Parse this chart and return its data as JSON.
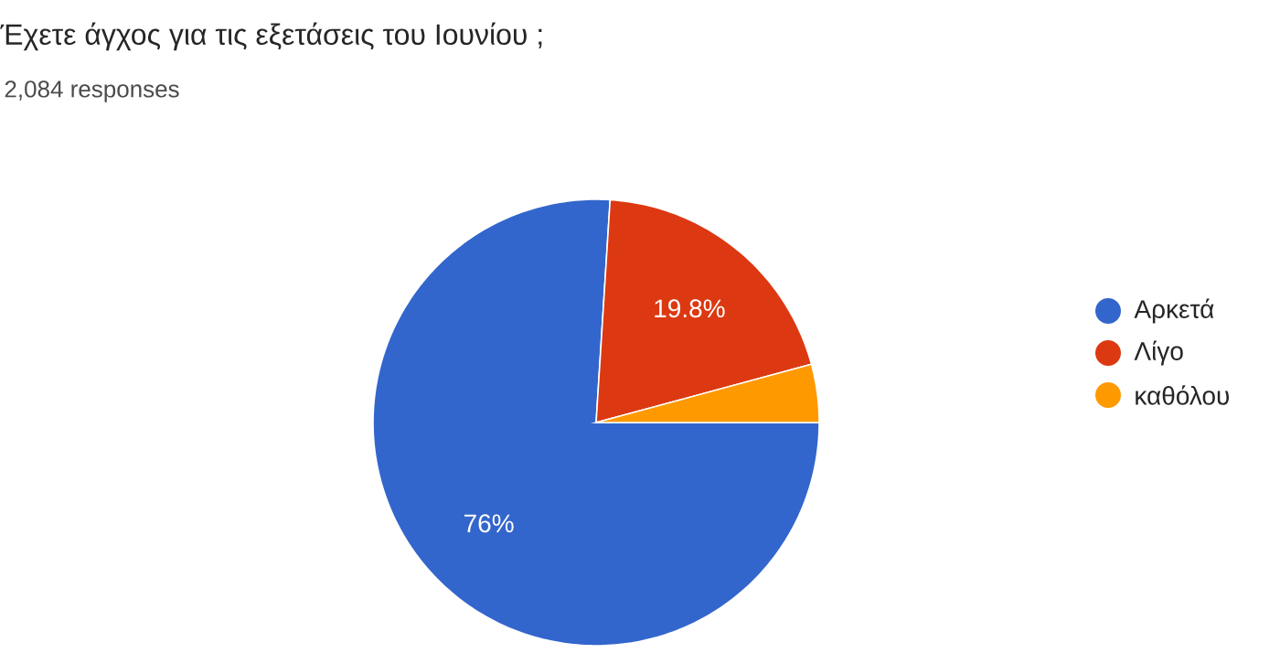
{
  "chart_data": {
    "type": "pie",
    "title": "Έχετε άγχος για τις εξετάσεις του Ιουνίου ;",
    "subtitle": "2,084 responses",
    "categories": [
      "Αρκετά",
      "Λίγο",
      "καθόλου"
    ],
    "values": [
      76,
      19.8,
      4.2
    ],
    "colors": [
      "#3366cc",
      "#dc3912",
      "#ff9900"
    ],
    "value_labels": [
      "76%",
      "19.8%",
      null
    ],
    "legend": "right"
  }
}
